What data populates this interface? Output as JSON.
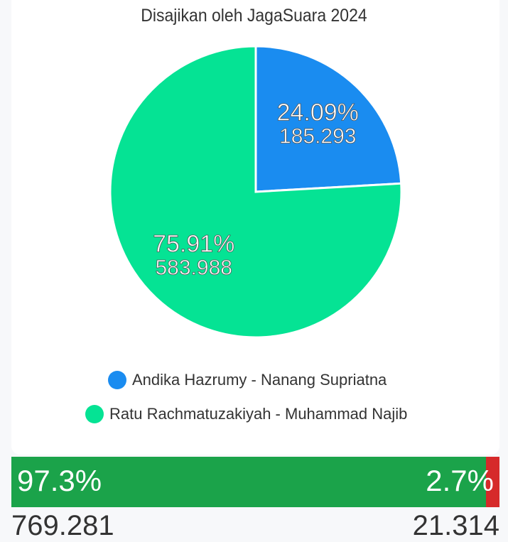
{
  "subtitle": "Disajikan oleh JagaSuara 2024",
  "chart_data": {
    "type": "pie",
    "slices": [
      {
        "name": "Andika Hazrumy - Nanang Supriatna",
        "percent": 24.09,
        "percent_label": "24.09%",
        "value": 185293,
        "value_label": "185.293",
        "color": "#1a8cf0"
      },
      {
        "name": "Ratu Rachmatuzakiyah - Muhammad Najib",
        "percent": 75.91,
        "percent_label": "75.91%",
        "value": 583988,
        "value_label": "583.988",
        "color": "#05e394"
      }
    ],
    "legend_position": "bottom"
  },
  "progress": {
    "left_percent": 97.3,
    "left_label": "97.3%",
    "left_count": "769.281",
    "left_color": "#1ba34a",
    "right_percent": 2.7,
    "right_label": "2.7%",
    "right_count": "21.314",
    "right_color": "#d62a2a"
  }
}
